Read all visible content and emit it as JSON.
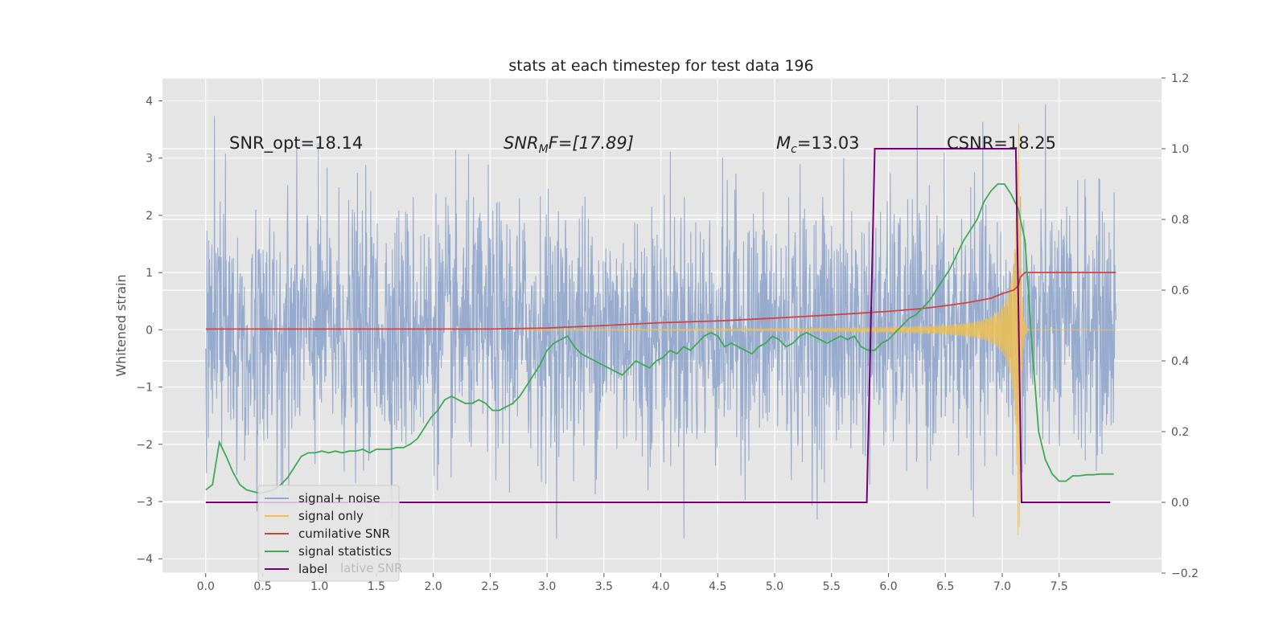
{
  "chart_data": {
    "type": "line",
    "title": "stats at each timestep for test data 196",
    "ylabel": "Whitened strain",
    "xlabel": "",
    "xlim": [
      -0.38,
      8.4
    ],
    "ylim": [
      -4.25,
      4.4
    ],
    "y2lim": [
      -0.2,
      1.2
    ],
    "xticks": [
      "0.0",
      "0.5",
      "1.0",
      "1.5",
      "2.0",
      "2.5",
      "3.0",
      "3.5",
      "4.0",
      "4.5",
      "5.0",
      "5.5",
      "6.0",
      "6.5",
      "7.0",
      "7.5"
    ],
    "yticks": [
      "−4",
      "−3",
      "−2",
      "−1",
      "0",
      "1",
      "2",
      "3",
      "4"
    ],
    "y2ticks": [
      "−0.2",
      "0.0",
      "0.2",
      "0.4",
      "0.6",
      "0.8",
      "1.0",
      "1.2"
    ],
    "annotations": {
      "snr_opt": "SNR_opt=18.14",
      "snr_mf_sym": "SNR",
      "snr_mf_sub": "M",
      "snr_mf_val": "F=[17.89]",
      "mc_sym": "M",
      "mc_sub": "c",
      "mc_val": "=13.03",
      "csnr": "CSNR=18.25"
    },
    "legend": {
      "location": "lower-left",
      "entries": [
        {
          "label": "signal+ noise",
          "color": "#92a8cc"
        },
        {
          "label": "signal only",
          "color": "#f0c050"
        },
        {
          "label": "cumilative SNR",
          "color": "#cc4444"
        },
        {
          "label": "signal statistics",
          "color": "#3daa55"
        },
        {
          "label": "label",
          "color": "#770077"
        }
      ],
      "hidden_fragment": "lative SNR"
    },
    "series": [
      {
        "name": "signal statistics",
        "axis": "right",
        "color": "#3daa55",
        "x": [
          0.0,
          0.06,
          0.12,
          0.18,
          0.24,
          0.3,
          0.36,
          0.42,
          0.48,
          0.54,
          0.6,
          0.66,
          0.72,
          0.78,
          0.84,
          0.9,
          0.96,
          1.02,
          1.08,
          1.14,
          1.2,
          1.26,
          1.32,
          1.38,
          1.44,
          1.5,
          1.56,
          1.62,
          1.68,
          1.74,
          1.8,
          1.86,
          1.92,
          1.98,
          2.04,
          2.1,
          2.16,
          2.22,
          2.28,
          2.34,
          2.4,
          2.46,
          2.52,
          2.58,
          2.64,
          2.7,
          2.76,
          2.82,
          2.88,
          2.94,
          3.0,
          3.06,
          3.12,
          3.18,
          3.24,
          3.3,
          3.36,
          3.42,
          3.48,
          3.54,
          3.6,
          3.66,
          3.72,
          3.78,
          3.84,
          3.9,
          3.96,
          4.02,
          4.08,
          4.14,
          4.2,
          4.26,
          4.32,
          4.38,
          4.44,
          4.5,
          4.56,
          4.62,
          4.68,
          4.74,
          4.8,
          4.86,
          4.92,
          4.98,
          5.04,
          5.1,
          5.16,
          5.22,
          5.28,
          5.34,
          5.4,
          5.46,
          5.52,
          5.58,
          5.64,
          5.7,
          5.76,
          5.82,
          5.88,
          5.94,
          6.0,
          6.06,
          6.12,
          6.18,
          6.24,
          6.3,
          6.36,
          6.42,
          6.48,
          6.54,
          6.6,
          6.66,
          6.72,
          6.78,
          6.84,
          6.9,
          6.96,
          7.02,
          7.08,
          7.14,
          7.2,
          7.26,
          7.32,
          7.38,
          7.44,
          7.5,
          7.56,
          7.62,
          7.68,
          7.74,
          7.8,
          7.86,
          7.92,
          7.98
        ],
        "values": [
          0.035,
          0.05,
          0.17,
          0.13,
          0.085,
          0.05,
          0.035,
          0.03,
          0.025,
          0.03,
          0.035,
          0.05,
          0.07,
          0.1,
          0.13,
          0.14,
          0.14,
          0.145,
          0.14,
          0.145,
          0.14,
          0.145,
          0.145,
          0.15,
          0.14,
          0.15,
          0.15,
          0.15,
          0.155,
          0.155,
          0.165,
          0.18,
          0.21,
          0.24,
          0.26,
          0.29,
          0.3,
          0.29,
          0.28,
          0.28,
          0.29,
          0.28,
          0.26,
          0.26,
          0.27,
          0.28,
          0.3,
          0.33,
          0.36,
          0.39,
          0.43,
          0.45,
          0.46,
          0.47,
          0.44,
          0.42,
          0.41,
          0.4,
          0.39,
          0.38,
          0.37,
          0.36,
          0.38,
          0.4,
          0.39,
          0.38,
          0.4,
          0.41,
          0.43,
          0.42,
          0.44,
          0.43,
          0.45,
          0.47,
          0.48,
          0.47,
          0.44,
          0.45,
          0.44,
          0.43,
          0.42,
          0.44,
          0.45,
          0.47,
          0.46,
          0.44,
          0.45,
          0.47,
          0.48,
          0.47,
          0.46,
          0.45,
          0.46,
          0.47,
          0.46,
          0.47,
          0.44,
          0.43,
          0.43,
          0.45,
          0.46,
          0.48,
          0.5,
          0.52,
          0.53,
          0.55,
          0.57,
          0.6,
          0.63,
          0.66,
          0.7,
          0.74,
          0.77,
          0.8,
          0.85,
          0.88,
          0.9,
          0.9,
          0.87,
          0.83,
          0.74,
          0.45,
          0.2,
          0.12,
          0.08,
          0.06,
          0.06,
          0.075,
          0.075,
          0.078,
          0.078,
          0.08,
          0.08,
          0.08
        ]
      },
      {
        "name": "cumilative SNR",
        "axis": "right",
        "color": "#cc4444",
        "x": [
          0.0,
          0.5,
          1.0,
          1.5,
          2.0,
          2.5,
          3.0,
          3.5,
          4.0,
          4.5,
          5.0,
          5.5,
          6.0,
          6.3,
          6.5,
          6.7,
          6.9,
          7.0,
          7.1,
          7.14,
          7.16,
          7.2,
          7.5,
          8.0
        ],
        "values": [
          0.49,
          0.49,
          0.49,
          0.49,
          0.49,
          0.49,
          0.493,
          0.5,
          0.508,
          0.513,
          0.521,
          0.53,
          0.54,
          0.548,
          0.556,
          0.565,
          0.577,
          0.59,
          0.6,
          0.612,
          0.637,
          0.65,
          0.65,
          0.65
        ]
      },
      {
        "name": "label",
        "axis": "right",
        "color": "#770077",
        "x": [
          0.0,
          5.81,
          5.88,
          7.12,
          7.17,
          7.95
        ],
        "values": [
          0.0,
          0.0,
          1.0,
          1.0,
          0.0,
          0.0
        ]
      },
      {
        "name": "signal+ noise",
        "axis": "left",
        "color": "#92a8cc",
        "description_stats": {
          "x_start": 0.0,
          "x_end": 8.0,
          "typical_amplitude": 1.1,
          "y_min": -3.65,
          "y_max": 4.05
        }
      },
      {
        "name": "signal only",
        "axis": "left",
        "color": "#f0c050",
        "description_stats": {
          "x_start": 2.8,
          "x_end": 8.0,
          "peak_x": 7.15,
          "peak_amplitude": 3.6
        }
      }
    ]
  }
}
